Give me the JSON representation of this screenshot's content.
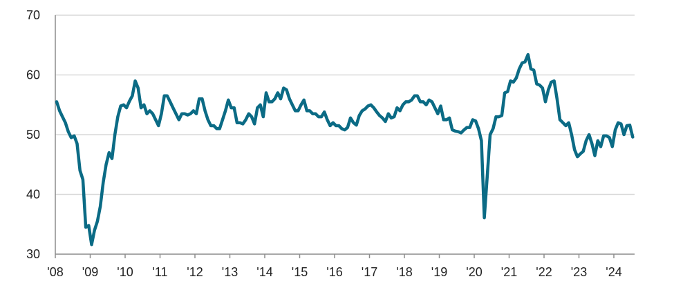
{
  "chart_data": {
    "type": "line",
    "title": "",
    "xlabel": "",
    "ylabel": "",
    "ylim": [
      30,
      70
    ],
    "yticks": [
      "30",
      "40",
      "50",
      "60",
      "70"
    ],
    "xticks": [
      "'08",
      "'09",
      "'10",
      "'11",
      "'12",
      "'13",
      "'14",
      "'15",
      "'16",
      "'17",
      "'18",
      "'19",
      "'20",
      "'21",
      "'22",
      "'23",
      "'24"
    ],
    "grid": "horizontal",
    "line_color": "#0b6b85",
    "series": [
      {
        "monthly_values_by_year": {
          "2008": [
            55.5,
            54,
            53,
            52,
            50.5,
            49.5,
            49.8,
            48.5,
            44,
            42.5,
            34.5,
            34.8
          ],
          "2009": [
            31.6,
            34,
            35.5,
            38,
            42,
            45,
            47,
            46,
            50,
            53,
            54.8,
            55
          ],
          "2010": [
            54.5,
            55.6,
            56.5,
            59,
            57.8,
            54.5,
            55,
            53.5,
            54,
            53.5,
            52.5,
            51.5
          ],
          "2011": [
            53.5,
            56.5,
            56.5,
            55.5,
            54.5,
            53.5,
            52.5,
            53.5,
            53.5,
            53.3,
            53.5,
            54
          ],
          "2012": [
            53.5,
            56,
            56,
            54,
            52.5,
            51.5,
            51.5,
            51,
            51,
            52.5,
            54,
            55.8
          ],
          "2013": [
            54.5,
            54.5,
            52,
            52,
            51.8,
            52.5,
            53.5,
            53,
            51.8,
            54.5,
            55,
            53
          ],
          "2014": [
            57,
            55.5,
            55.5,
            56,
            57,
            56,
            57.8,
            57.5,
            56,
            55,
            54,
            54
          ],
          "2015": [
            55,
            55.8,
            54,
            54,
            53.5,
            53.5,
            53,
            53,
            53.8,
            52.5,
            51.5,
            52
          ],
          "2016": [
            51.5,
            51.5,
            51,
            50.8,
            51.2,
            52.8,
            52,
            51.6,
            53.2,
            54,
            54.3,
            54.8
          ],
          "2017": [
            55,
            54.5,
            53.8,
            53.2,
            52.8,
            52.2,
            53.5,
            52.8,
            53,
            54.5,
            54,
            55
          ],
          "2018": [
            55.5,
            55.5,
            55.8,
            56.5,
            56.5,
            55.5,
            55.5,
            55,
            55.8,
            55.5,
            54.5,
            53.5
          ],
          "2019": [
            54.8,
            52.5,
            52.5,
            52.8,
            50.8,
            50.6,
            50.5,
            50.3,
            50.8,
            51.2,
            51.2,
            52.5
          ],
          "2020": [
            52.3,
            51,
            49,
            36.1,
            43,
            50,
            51,
            53,
            53,
            53.2,
            57,
            57.2
          ],
          "2021": [
            59,
            58.8,
            59.5,
            61,
            62,
            62.2,
            63.4,
            61,
            60.8,
            58.5,
            58.3,
            57.8
          ],
          "2022": [
            55.5,
            57.5,
            58.8,
            59,
            56,
            52.5,
            52,
            51.5,
            52,
            50,
            47.5,
            46.3
          ],
          "2023": [
            46.8,
            47.2,
            49,
            50,
            48.5,
            46.5,
            49,
            48,
            49.8,
            49.8,
            49.5,
            48
          ],
          "2024": [
            50.8,
            52,
            51.8,
            50,
            51.5,
            51.6,
            49.6
          ]
        }
      }
    ]
  }
}
